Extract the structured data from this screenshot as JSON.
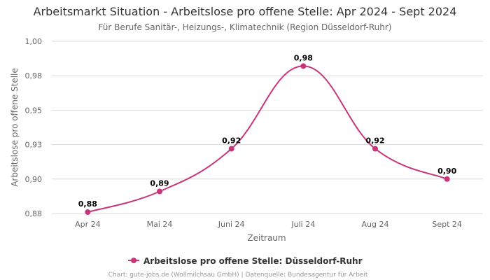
{
  "colors": {
    "series": "#c7357b",
    "grid": "#d9d9d9"
  },
  "chart_data": {
    "type": "line",
    "title": "Arbeitsmarkt Situation - Arbeitslose pro offene Stelle: Apr 2024 - Sept 2024",
    "subtitle": "Für Berufe Sanitär-, Heizungs-, Klimatechnik (Region Düsseldorf-Ruhr)",
    "xlabel": "Zeitraum",
    "ylabel": "Arbeitslose pro offene Stelle",
    "categories": [
      "Apr 24",
      "Mai 24",
      "Juni 24",
      "Juli 24",
      "Aug 24",
      "Sept 24"
    ],
    "series": [
      {
        "name": "Arbeitslose pro offene Stelle: Düsseldorf-Ruhr",
        "values": [
          0.876,
          0.891,
          0.922,
          0.982,
          0.922,
          0.9
        ],
        "labels": [
          "0,88",
          "0,89",
          "0,92",
          "0,98",
          "0,92",
          "0,90"
        ]
      }
    ],
    "ylim": [
      0.875,
      1.0
    ],
    "yticks": [
      0.875,
      0.9,
      0.925,
      0.95,
      0.975,
      1.0
    ],
    "ytick_labels": [
      "0,88",
      "0,90",
      "0,93",
      "0,95",
      "0,98",
      "1,00"
    ],
    "grid": true,
    "legend": "bottom-center"
  },
  "credits": "Chart: gute-jobs.de (Wollmilchsau GmbH) | Datenquelle: Bundesagentur für Arbeit"
}
